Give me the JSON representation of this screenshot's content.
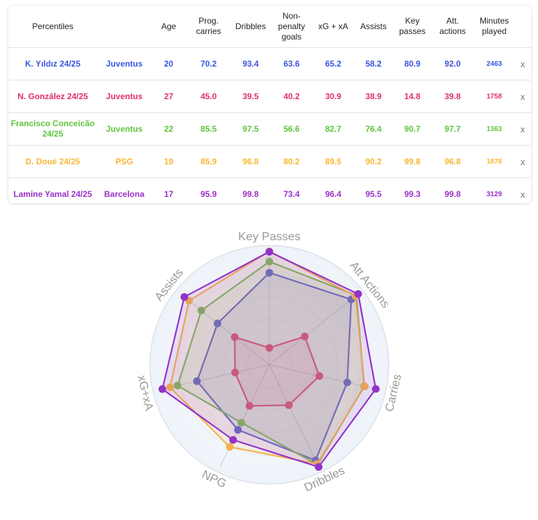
{
  "table": {
    "headers": [
      "Percentiles",
      "",
      "Age",
      "Prog. carries",
      "Dribbles",
      "Non-penalty goals",
      "xG + xA",
      "Assists",
      "Key passes",
      "Att. actions",
      "Minutes played",
      ""
    ],
    "rows": [
      {
        "player": "K. Yıldız 24/25",
        "team": "Juventus",
        "age": "20",
        "prog_carries": "70.2",
        "dribbles": "93.4",
        "np_goals": "63.6",
        "xg_xa": "65.2",
        "assists": "58.2",
        "key_passes": "80.9",
        "att_actions": "92.0",
        "minutes": "2463",
        "remove": "x",
        "color": "#3b55e0"
      },
      {
        "player": "N. González 24/25",
        "team": "Juventus",
        "age": "27",
        "prog_carries": "45.0",
        "dribbles": "39.5",
        "np_goals": "40.2",
        "xg_xa": "30.9",
        "assists": "38.9",
        "key_passes": "14.8",
        "att_actions": "39.8",
        "minutes": "1758",
        "remove": "x",
        "color": "#e0306f"
      },
      {
        "player": "Francisco Conceicão 24/25",
        "team": "Juventus",
        "age": "22",
        "prog_carries": "85.5",
        "dribbles": "97.5",
        "np_goals": "56.6",
        "xg_xa": "82.7",
        "assists": "76.4",
        "key_passes": "90.7",
        "att_actions": "97.7",
        "minutes": "1363",
        "remove": "x",
        "color": "#5ec43c"
      },
      {
        "player": "D. Douë 24/25",
        "team": "PSG",
        "age": "19",
        "prog_carries": "85.9",
        "dribbles": "96.8",
        "np_goals": "80.2",
        "xg_xa": "89.5",
        "assists": "90.2",
        "key_passes": "99.8",
        "att_actions": "96.8",
        "minutes": "1878",
        "remove": "x",
        "color": "#f7b733"
      },
      {
        "player": "Lamine Yamal 24/25",
        "team": "Barcelona",
        "age": "17",
        "prog_carries": "95.9",
        "dribbles": "99.8",
        "np_goals": "73.4",
        "xg_xa": "96.4",
        "assists": "95.5",
        "key_passes": "99.3",
        "att_actions": "99.8",
        "minutes": "3129",
        "remove": "x",
        "color": "#9b2fc9"
      }
    ]
  },
  "chart_data": {
    "type": "radar",
    "axes": [
      "Key Passes",
      "Att Actions",
      "Carries",
      "Dribbles",
      "NPG",
      "xG+xA",
      "Assists"
    ],
    "range": [
      0,
      100
    ],
    "series": [
      {
        "name": "K. Yıldız 24/25",
        "color": "#5562d2",
        "values": [
          80.9,
          92.0,
          70.2,
          93.4,
          63.6,
          65.2,
          58.2
        ]
      },
      {
        "name": "N. González 24/25",
        "color": "#d9467c",
        "values": [
          14.8,
          39.8,
          45.0,
          39.5,
          40.2,
          30.9,
          38.9
        ]
      },
      {
        "name": "Francisco Conceicão 24/25",
        "color": "#74b85d",
        "values": [
          90.7,
          97.7,
          85.5,
          97.5,
          56.6,
          82.7,
          76.4
        ]
      },
      {
        "name": "D. Douë 24/25",
        "color": "#f5b34e",
        "values": [
          99.8,
          96.8,
          85.9,
          96.8,
          80.2,
          89.5,
          90.2
        ]
      },
      {
        "name": "Lamine Yamal 24/25",
        "color": "#9333c9",
        "values": [
          99.3,
          99.8,
          95.9,
          99.8,
          73.4,
          96.4,
          95.5
        ]
      }
    ]
  }
}
